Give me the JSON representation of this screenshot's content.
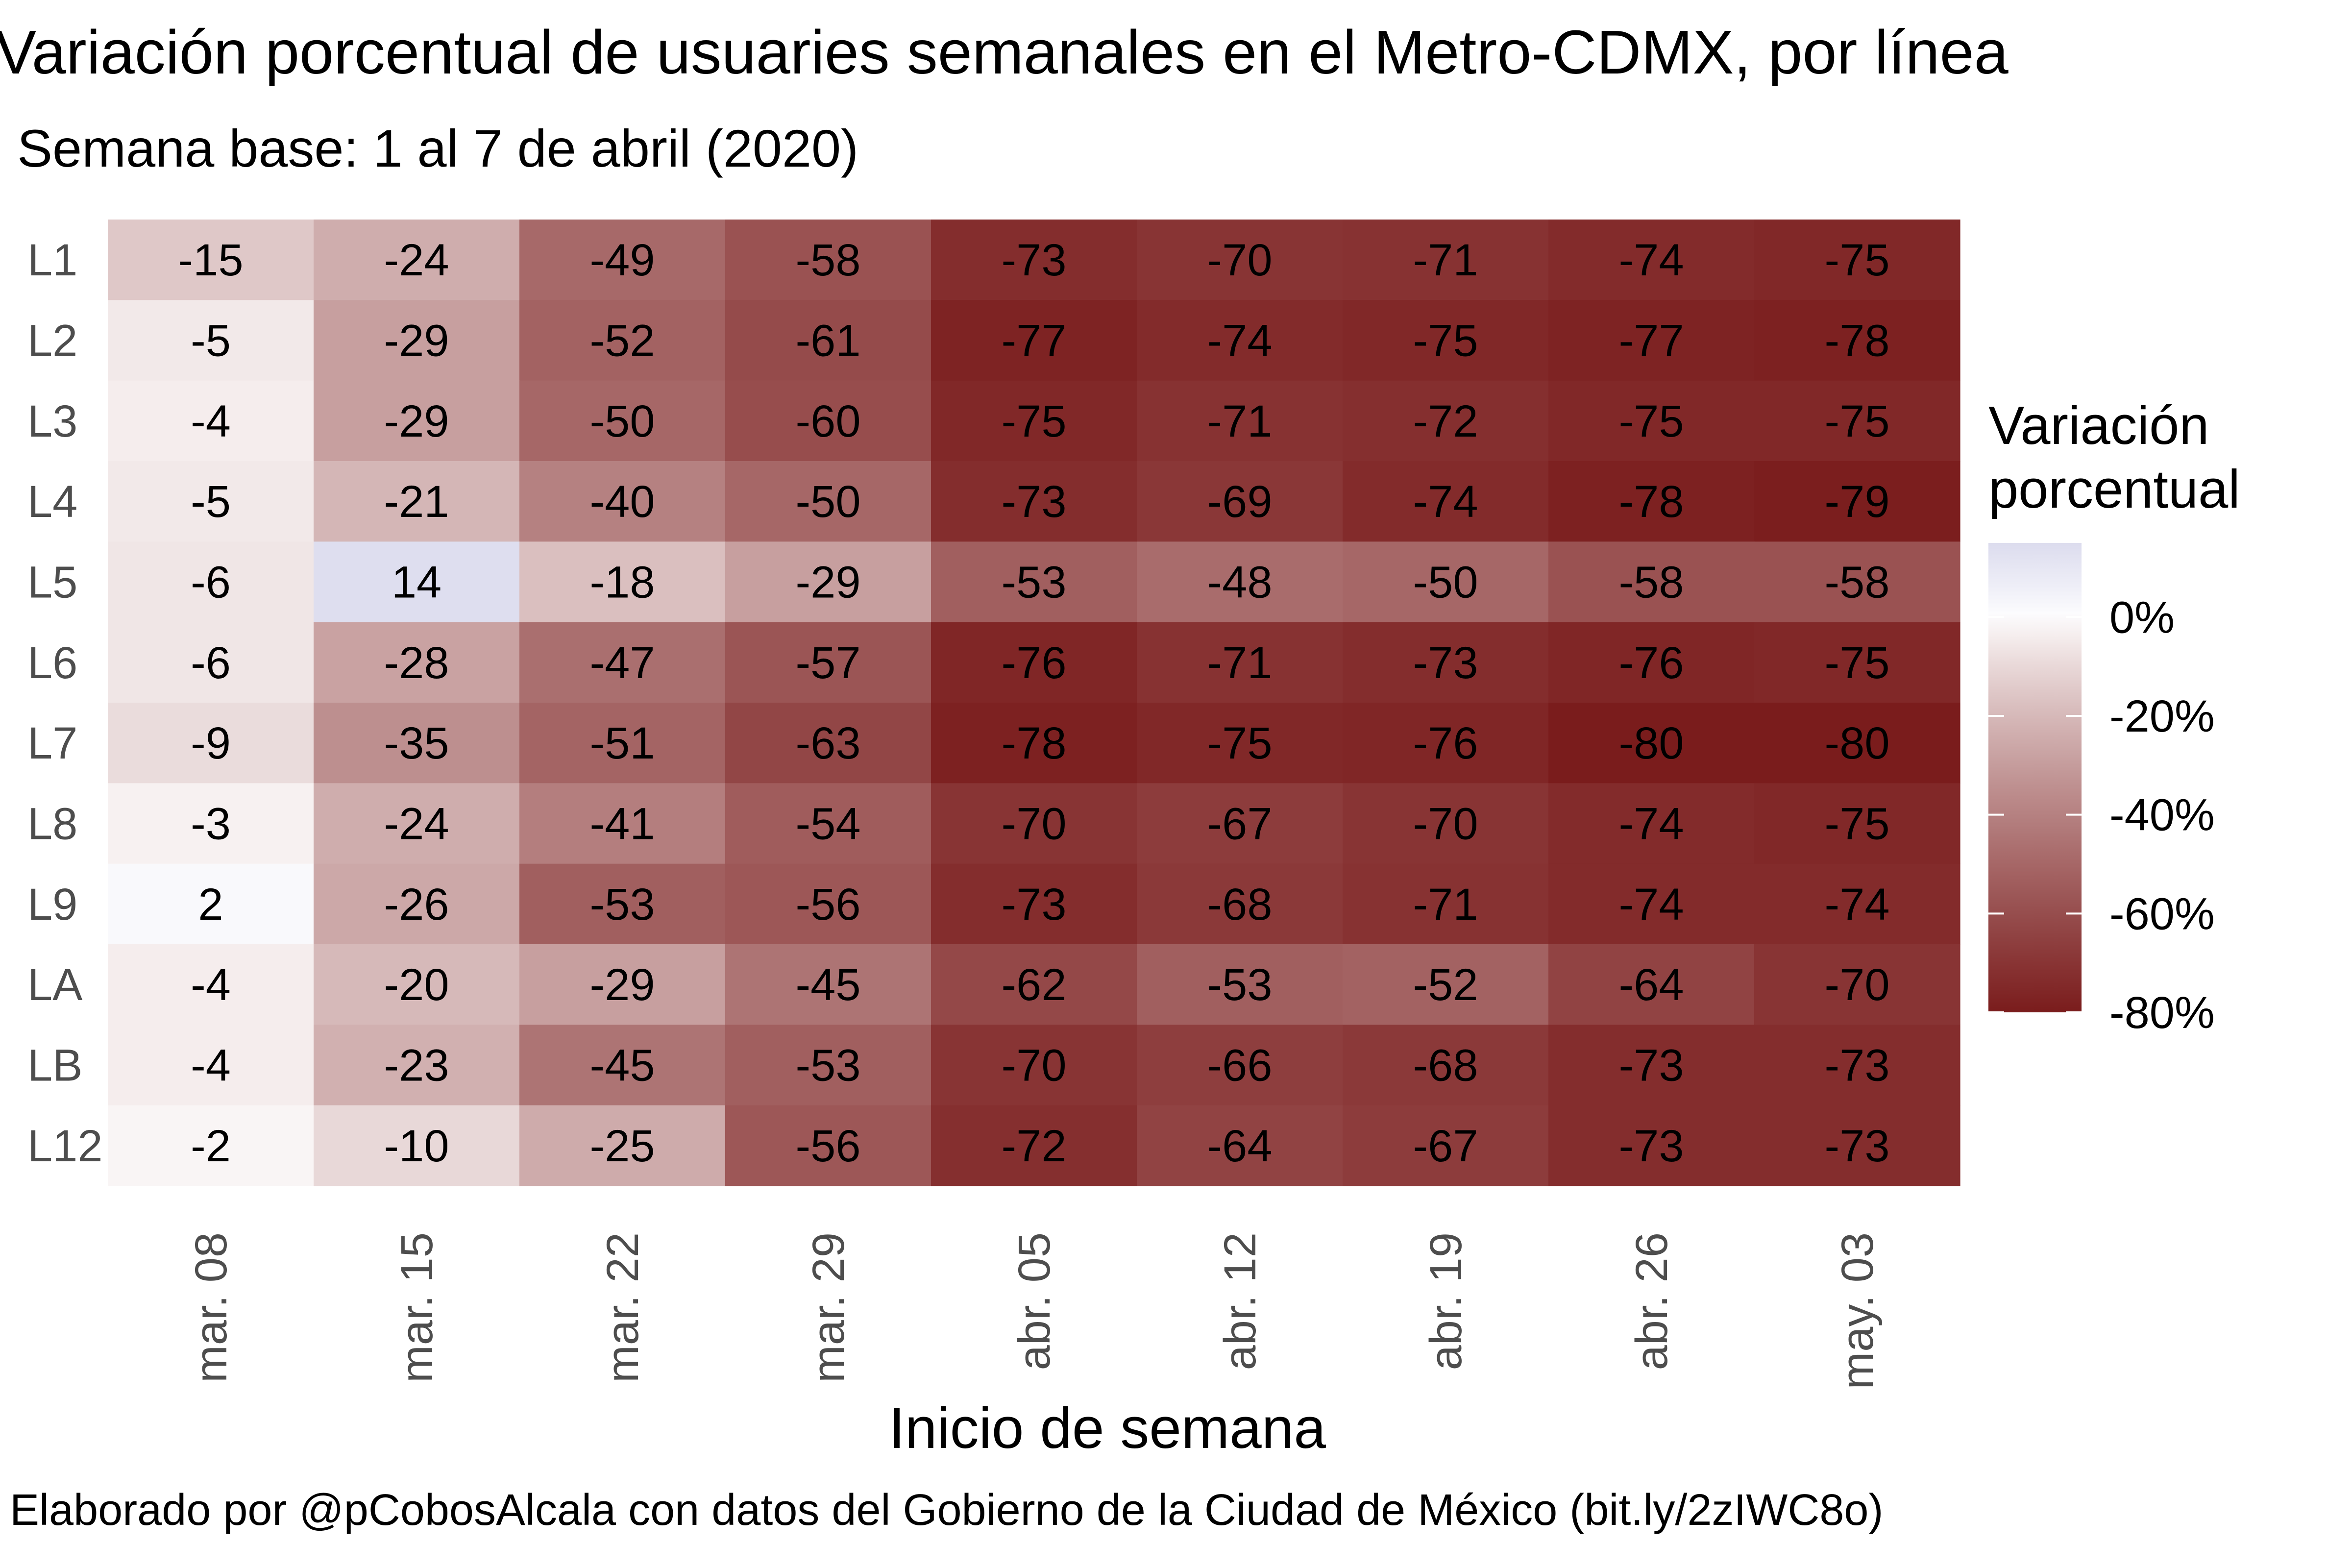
{
  "chart_data": {
    "type": "heatmap",
    "title": "Variación porcentual de usuaries semanales en el Metro-CDMX, por línea",
    "subtitle": "Semana base: 1 al 7 de abril (2020)",
    "xlabel": "Inicio de semana",
    "ylabel": "",
    "caption": "Elaborado por @pCobosAlcala con datos del Gobierno de la Ciudad de México (bit.ly/2zIWC8o)",
    "x": [
      "mar. 08",
      "mar. 15",
      "mar. 22",
      "mar. 29",
      "abr. 05",
      "abr. 12",
      "abr. 19",
      "abr. 26",
      "may. 03"
    ],
    "y": [
      "L1",
      "L2",
      "L3",
      "L4",
      "L5",
      "L6",
      "L7",
      "L8",
      "L9",
      "LA",
      "LB",
      "L12"
    ],
    "values": [
      [
        -15,
        -24,
        -49,
        -58,
        -73,
        -70,
        -71,
        -74,
        -75
      ],
      [
        -5,
        -29,
        -52,
        -61,
        -77,
        -74,
        -75,
        -77,
        -78
      ],
      [
        -4,
        -29,
        -50,
        -60,
        -75,
        -71,
        -72,
        -75,
        -75
      ],
      [
        -5,
        -21,
        -40,
        -50,
        -73,
        -69,
        -74,
        -78,
        -79
      ],
      [
        -6,
        14,
        -18,
        -29,
        -53,
        -48,
        -50,
        -58,
        -58
      ],
      [
        -6,
        -28,
        -47,
        -57,
        -76,
        -71,
        -73,
        -76,
        -75
      ],
      [
        -9,
        -35,
        -51,
        -63,
        -78,
        -75,
        -76,
        -80,
        -80
      ],
      [
        -3,
        -24,
        -41,
        -54,
        -70,
        -67,
        -70,
        -74,
        -75
      ],
      [
        2,
        -26,
        -53,
        -56,
        -73,
        -68,
        -71,
        -74,
        -74
      ],
      [
        -4,
        -20,
        -29,
        -45,
        -62,
        -53,
        -52,
        -64,
        -70
      ],
      [
        -4,
        -23,
        -45,
        -53,
        -70,
        -66,
        -68,
        -73,
        -73
      ],
      [
        -2,
        -10,
        -25,
        -56,
        -72,
        -64,
        -67,
        -73,
        -73
      ]
    ],
    "legend": {
      "title_lines": [
        "Variación",
        "porcentual"
      ],
      "ticks": [
        0,
        -20,
        -40,
        -60,
        -80
      ],
      "tick_labels": [
        "0%",
        "-20%",
        "-40%",
        "-60%",
        "-80%"
      ],
      "range": [
        -80,
        15
      ],
      "placement": "right"
    },
    "colors": {
      "high": "#dcdcee",
      "mid": "#ffffff",
      "low": "#7a1c1c",
      "text": "#000000",
      "axis_text": "#4d4d4d"
    }
  }
}
